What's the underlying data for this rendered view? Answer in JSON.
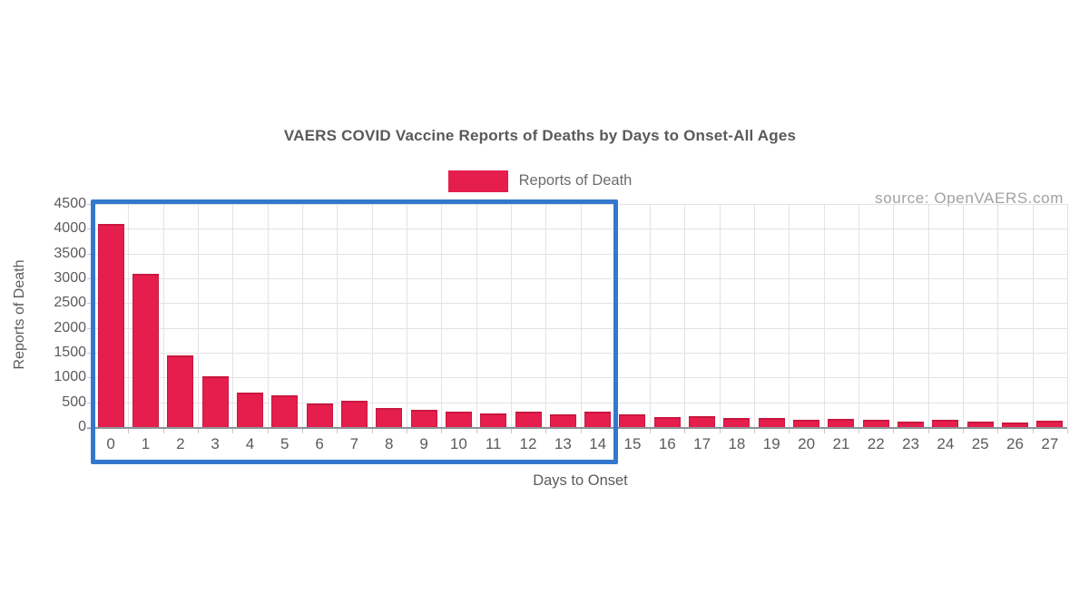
{
  "title": "VAERS COVID Vaccine Reports of Deaths by Days to Onset-All Ages",
  "source_label": "source: OpenVAERS.com",
  "legend": {
    "label": "Reports of Death"
  },
  "axes": {
    "x_title": "Days to Onset",
    "y_title": "Reports of Death"
  },
  "colors": {
    "bar_fill": "#e51e4d",
    "bar_border": "#c9173f",
    "highlight_box": "#3478cd",
    "gridline": "#e3e3e7",
    "axis_line": "#8f9296",
    "tick": "#c6c8cc",
    "label_text": "#5a5b5e",
    "title_text": "#58595b",
    "legend_text": "#6b6c6e",
    "source_text": "#9fa1a4"
  },
  "chart_data": {
    "type": "bar",
    "title": "VAERS COVID Vaccine Reports of Deaths by Days to Onset-All Ages",
    "xlabel": "Days to Onset",
    "ylabel": "Reports of Death",
    "categories": [
      "0",
      "1",
      "2",
      "3",
      "4",
      "5",
      "6",
      "7",
      "8",
      "9",
      "10",
      "11",
      "12",
      "13",
      "14",
      "15",
      "16",
      "17",
      "18",
      "19",
      "20",
      "21",
      "22",
      "23",
      "24",
      "25",
      "26",
      "27"
    ],
    "values": [
      4100,
      3100,
      1450,
      1020,
      690,
      640,
      475,
      530,
      390,
      340,
      320,
      275,
      320,
      260,
      310,
      250,
      205,
      225,
      175,
      185,
      150,
      170,
      145,
      105,
      140,
      115,
      90,
      130
    ],
    "ylim": [
      0,
      4500
    ],
    "yticks": [
      0,
      500,
      1000,
      1500,
      2000,
      2500,
      3000,
      3500,
      4000,
      4500
    ],
    "legend_entries": [
      "Reports of Death"
    ],
    "legend_position": "top-center",
    "grid": true,
    "annotations": [
      {
        "type": "highlight_box",
        "label": "blue box around days 0 through 14",
        "x_from": 0,
        "x_to": 14,
        "color": "#3478cd"
      }
    ],
    "source": "source: OpenVAERS.com"
  }
}
